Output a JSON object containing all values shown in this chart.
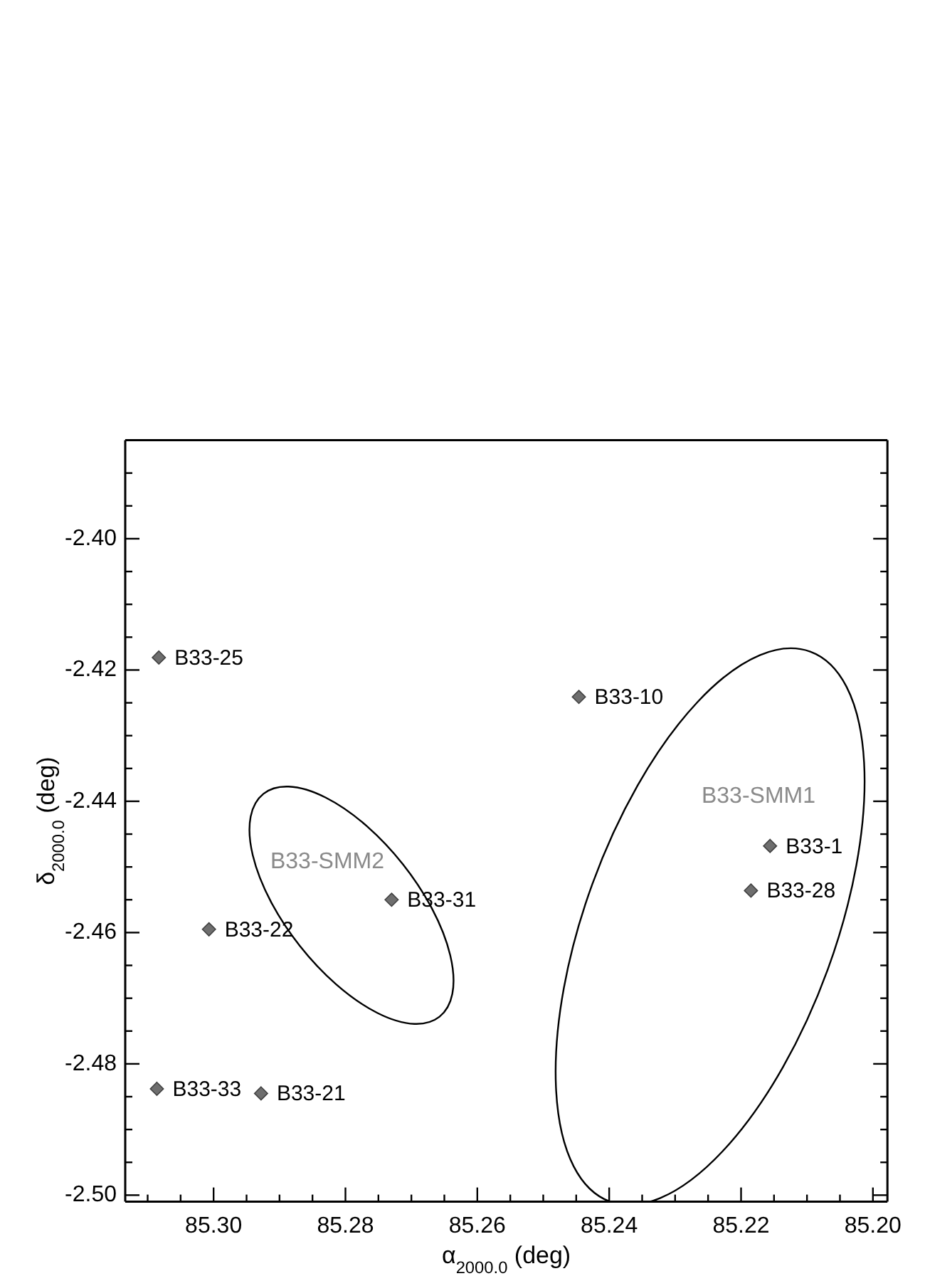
{
  "chart_data": {
    "type": "scatter",
    "xlabel": "α$_{2000.0}$ (deg)",
    "ylabel": "δ$_{2000.0}$ (deg)",
    "xlim": [
      85.3134,
      85.1978
    ],
    "ylim": [
      -2.501,
      -2.385
    ],
    "xticks": [
      {
        "value": 85.31,
        "label": null
      },
      {
        "value": 85.305,
        "label": null
      },
      {
        "value": 85.3,
        "label": "85.30"
      },
      {
        "value": 85.295,
        "label": null
      },
      {
        "value": 85.29,
        "label": null
      },
      {
        "value": 85.285,
        "label": null
      },
      {
        "value": 85.28,
        "label": "85.28"
      },
      {
        "value": 85.275,
        "label": null
      },
      {
        "value": 85.27,
        "label": null
      },
      {
        "value": 85.265,
        "label": null
      },
      {
        "value": 85.26,
        "label": "85.26"
      },
      {
        "value": 85.255,
        "label": null
      },
      {
        "value": 85.25,
        "label": null
      },
      {
        "value": 85.245,
        "label": null
      },
      {
        "value": 85.24,
        "label": "85.24"
      },
      {
        "value": 85.235,
        "label": null
      },
      {
        "value": 85.23,
        "label": null
      },
      {
        "value": 85.225,
        "label": null
      },
      {
        "value": 85.22,
        "label": "85.22"
      },
      {
        "value": 85.215,
        "label": null
      },
      {
        "value": 85.21,
        "label": null
      },
      {
        "value": 85.205,
        "label": null
      },
      {
        "value": 85.2,
        "label": "85.20"
      }
    ],
    "yticks": [
      {
        "value": -2.5,
        "label": "-2.50"
      },
      {
        "value": -2.495,
        "label": null
      },
      {
        "value": -2.49,
        "label": null
      },
      {
        "value": -2.485,
        "label": null
      },
      {
        "value": -2.48,
        "label": "-2.48"
      },
      {
        "value": -2.475,
        "label": null
      },
      {
        "value": -2.47,
        "label": null
      },
      {
        "value": -2.465,
        "label": null
      },
      {
        "value": -2.46,
        "label": "-2.46"
      },
      {
        "value": -2.455,
        "label": null
      },
      {
        "value": -2.45,
        "label": null
      },
      {
        "value": -2.445,
        "label": null
      },
      {
        "value": -2.44,
        "label": "-2.44"
      },
      {
        "value": -2.435,
        "label": null
      },
      {
        "value": -2.43,
        "label": null
      },
      {
        "value": -2.425,
        "label": null
      },
      {
        "value": -2.42,
        "label": "-2.42"
      },
      {
        "value": -2.415,
        "label": null
      },
      {
        "value": -2.41,
        "label": null
      },
      {
        "value": -2.405,
        "label": null
      },
      {
        "value": -2.4,
        "label": "-2.40"
      },
      {
        "value": -2.395,
        "label": null
      },
      {
        "value": -2.39,
        "label": null
      }
    ],
    "marker": "diamond",
    "series": [
      {
        "color": "#6e6e6e",
        "x": [
          85.3083,
          85.2446,
          85.2156,
          85.2185,
          85.273,
          85.3007,
          85.3086,
          85.2928
        ],
        "values": [
          -2.4181,
          -2.4241,
          -2.4468,
          -2.4536,
          -2.455,
          -2.4595,
          -2.4838,
          -2.4845
        ],
        "value_labels": [
          "B33-25",
          "B33-10",
          "B33-1",
          "B33-28",
          "B33-31",
          "B33-22",
          "B33-33",
          "B33-21"
        ]
      }
    ],
    "annotations": [
      "B33-SMM1",
      "B33-SMM2"
    ]
  }
}
